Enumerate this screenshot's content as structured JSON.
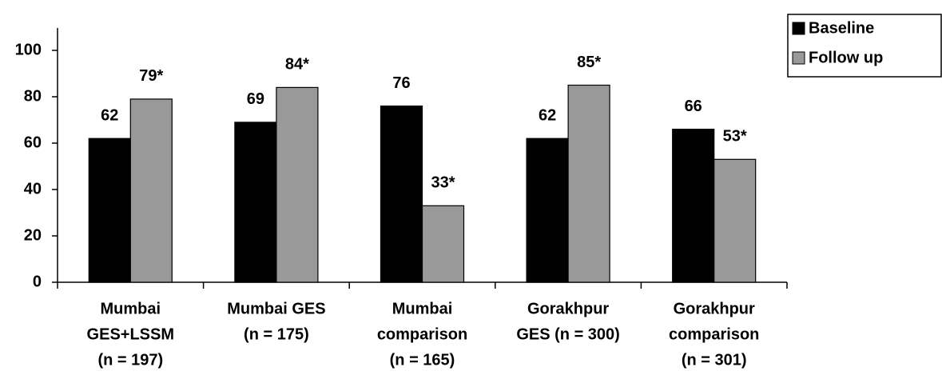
{
  "chart_data": {
    "type": "bar",
    "categories": [
      [
        "Mumbai",
        "GES+LSSM",
        "(n = 197)"
      ],
      [
        "Mumbai GES",
        "(n = 175)"
      ],
      [
        "Mumbai",
        "comparison",
        "(n = 165)"
      ],
      [
        "Gorakhpur",
        "GES (n = 300)"
      ],
      [
        "Gorakhpur",
        "comparison",
        "(n = 301)"
      ]
    ],
    "series": [
      {
        "name": "Baseline",
        "color": "#000000",
        "values": [
          62,
          69,
          76,
          62,
          66
        ]
      },
      {
        "name": "Follow up",
        "color": "#999999",
        "values": [
          79,
          84,
          33,
          85,
          53
        ],
        "value_labels": [
          "79*",
          "84*",
          "33*",
          "85*",
          "53*"
        ]
      }
    ],
    "ylim": [
      0,
      100
    ],
    "yticks": [
      0,
      20,
      40,
      60,
      80,
      100
    ],
    "grid": false,
    "legend": "top-right"
  }
}
